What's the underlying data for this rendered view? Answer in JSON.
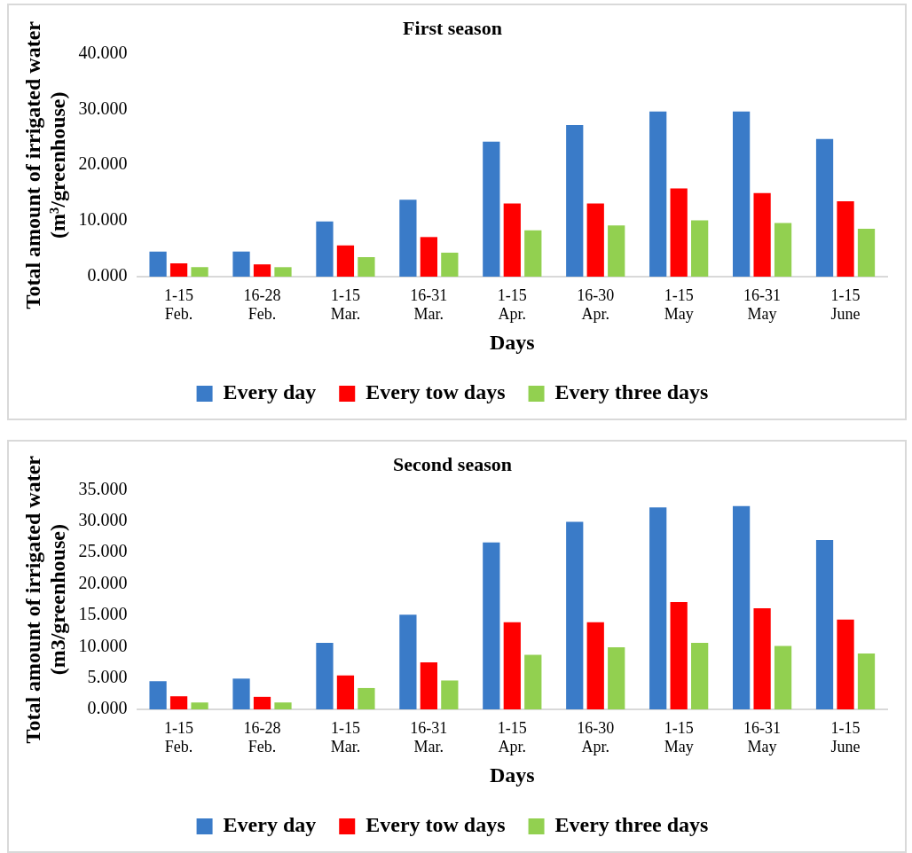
{
  "chart_data": [
    {
      "type": "bar",
      "title": "First season",
      "xlabel": "Days",
      "ylabel": "Total amount of irrigated water (m³/greenhouse)",
      "categories": [
        "1-15\nFeb.",
        "16-28\nFeb.",
        "1-15\nMar.",
        "16-31\nMar.",
        "1-15\nApr.",
        "16-30\nApr.",
        "1-15\nMay",
        "16-31\nMay",
        "1-15\nJune"
      ],
      "series": [
        {
          "name": "Every day",
          "color": "#3a7bc8",
          "values": [
            4.5,
            4.5,
            9.9,
            13.8,
            24.2,
            27.2,
            29.6,
            29.6,
            24.7
          ]
        },
        {
          "name": "Every tow days",
          "color": "#ff0000",
          "values": [
            2.4,
            2.2,
            5.6,
            7.1,
            13.1,
            13.1,
            15.8,
            15.0,
            13.5
          ]
        },
        {
          "name": "Every three days",
          "color": "#92d050",
          "values": [
            1.7,
            1.7,
            3.5,
            4.3,
            8.3,
            9.2,
            10.1,
            9.6,
            8.6
          ]
        }
      ],
      "ylim": [
        0,
        40
      ],
      "yticks": [
        {
          "value": 0,
          "label": "0.000"
        },
        {
          "value": 10,
          "label": "10.000"
        },
        {
          "value": 20,
          "label": "20.000"
        },
        {
          "value": 30,
          "label": "30.000"
        },
        {
          "value": 40,
          "label": "40.000"
        }
      ],
      "grid": false,
      "legend": "bottom"
    },
    {
      "type": "bar",
      "title": "Second season",
      "xlabel": "Days",
      "ylabel": "Total amount of irrigated water (m3/greenhouse)",
      "categories": [
        "1-15\nFeb.",
        "16-28\nFeb.",
        "1-15\nMar.",
        "16-31\nMar.",
        "1-15\nApr.",
        "16-30\nApr.",
        "1-15\nMay",
        "16-31\nMay",
        "1-15\nJune"
      ],
      "series": [
        {
          "name": "Every day",
          "color": "#3a7bc8",
          "values": [
            4.5,
            4.9,
            10.6,
            15.1,
            26.6,
            29.9,
            32.2,
            32.4,
            27.0
          ]
        },
        {
          "name": "Every tow days",
          "color": "#ff0000",
          "values": [
            2.1,
            2.0,
            5.4,
            7.5,
            13.9,
            13.9,
            17.1,
            16.1,
            14.3
          ]
        },
        {
          "name": "Every three days",
          "color": "#92d050",
          "values": [
            1.1,
            1.1,
            3.4,
            4.6,
            8.7,
            9.9,
            10.6,
            10.1,
            8.9
          ]
        }
      ],
      "ylim": [
        0,
        35
      ],
      "yticks": [
        {
          "value": 0,
          "label": "0.000"
        },
        {
          "value": 5,
          "label": "5.000"
        },
        {
          "value": 10,
          "label": "10.000"
        },
        {
          "value": 15,
          "label": "15.000"
        },
        {
          "value": 20,
          "label": "20.000"
        },
        {
          "value": 25,
          "label": "25.000"
        },
        {
          "value": 30,
          "label": "30.000"
        },
        {
          "value": 35,
          "label": "35.000"
        }
      ],
      "grid": false,
      "legend": "bottom"
    }
  ]
}
